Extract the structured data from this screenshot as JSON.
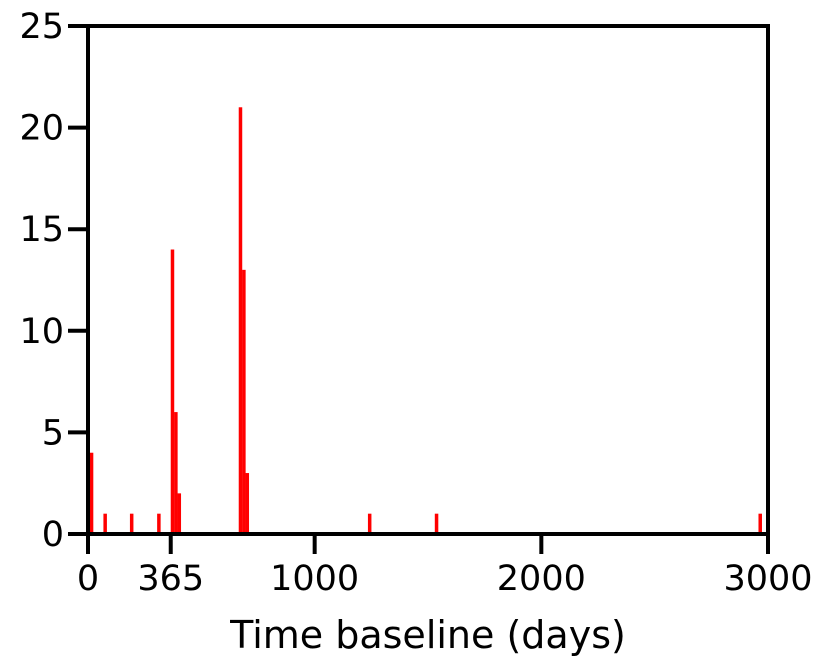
{
  "chart_data": {
    "type": "bar",
    "title": "",
    "xlabel": "Time baseline (days)",
    "ylabel": "",
    "xlim": [
      0,
      3000
    ],
    "ylim": [
      0,
      25
    ],
    "xticks": [
      0,
      365,
      1000,
      2000,
      3000
    ],
    "xtick_labels": [
      "0",
      "365",
      "1000",
      "2000",
      "3000"
    ],
    "yticks": [
      0,
      5,
      10,
      15,
      20,
      25
    ],
    "ytick_labels": [
      "0",
      "5",
      "10",
      "15",
      "20",
      "25"
    ],
    "grid": false,
    "bar_color": "#ff0000",
    "bin_width": 15,
    "bars": [
      {
        "x": 8,
        "value": 4
      },
      {
        "x": 68,
        "value": 1
      },
      {
        "x": 185,
        "value": 1
      },
      {
        "x": 305,
        "value": 1
      },
      {
        "x": 365,
        "value": 14
      },
      {
        "x": 380,
        "value": 6
      },
      {
        "x": 395,
        "value": 2
      },
      {
        "x": 665,
        "value": 21
      },
      {
        "x": 680,
        "value": 13
      },
      {
        "x": 695,
        "value": 3
      },
      {
        "x": 1235,
        "value": 1
      },
      {
        "x": 1530,
        "value": 1
      },
      {
        "x": 2958,
        "value": 1
      }
    ]
  }
}
